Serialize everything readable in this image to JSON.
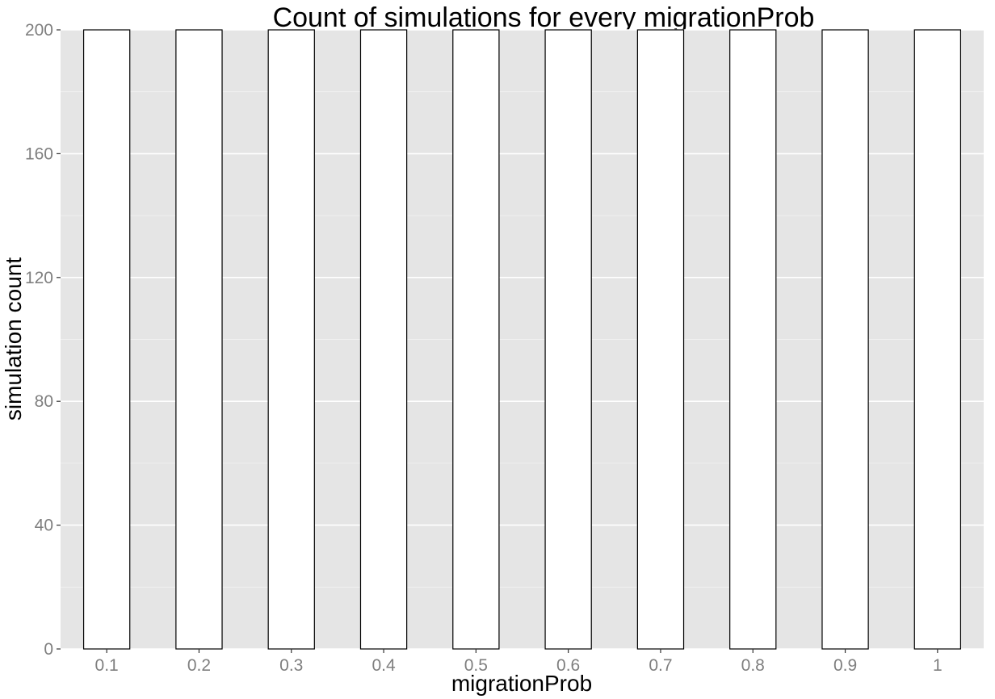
{
  "chart_data": {
    "type": "bar",
    "title": "Count of simulations for every migrationProb",
    "xlabel": "migrationProb",
    "ylabel": "simulation count",
    "categories": [
      "0.1",
      "0.2",
      "0.3",
      "0.4",
      "0.5",
      "0.6",
      "0.7",
      "0.8",
      "0.9",
      "1"
    ],
    "values": [
      200,
      200,
      200,
      200,
      200,
      200,
      200,
      200,
      200,
      200
    ],
    "ylim": [
      0,
      200
    ],
    "yticks": [
      0,
      40,
      80,
      120,
      160,
      200
    ],
    "grid": true,
    "legend": "none",
    "colors": {
      "panel_background": "#e5e5e5",
      "grid_major": "#ffffff",
      "bar_fill": "#ffffff",
      "bar_outline": "#000000",
      "tick_text": "#7f7f7f"
    }
  }
}
